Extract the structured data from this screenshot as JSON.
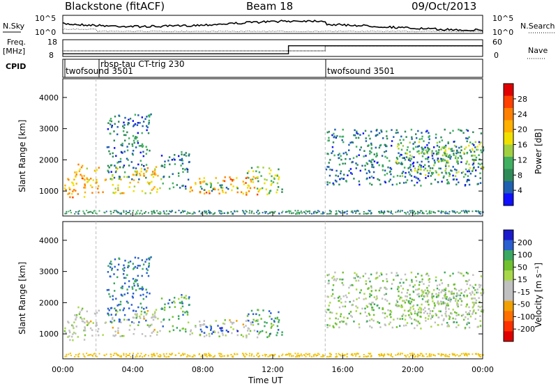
{
  "header": {
    "station": "Blackstone (fitACF)",
    "beam": "Beam 18",
    "date": "09/Oct/2013"
  },
  "noise_panel": {
    "left_label": "N.Sky",
    "right_label": "N.Search",
    "tick_top": "10^5",
    "tick_bottom": "10^0"
  },
  "freq_panel": {
    "left_label_1": "Freq.",
    "left_label_2": "[MHz]",
    "left_tick_top": "18",
    "left_tick_bottom": "8",
    "right_label": "Nave",
    "right_tick_top": "60",
    "right_tick_bottom": "0"
  },
  "cpid_panel": {
    "label": "CPID",
    "segments": [
      "twofsound 3501",
      "rbsp-tau CT-trig 230",
      "twofsound 3501"
    ]
  },
  "power_panel": {
    "ylabel": "Slant Range [km]",
    "cbar_label": "Power [dB]",
    "cbar_ticks": [
      "28",
      "24",
      "20",
      "16",
      "12",
      "8",
      "4"
    ],
    "cbar_colors": [
      "#e00000",
      "#ff4000",
      "#ff8000",
      "#ffb000",
      "#f0e000",
      "#a0d040",
      "#40b060",
      "#2e8b57",
      "#2060b0",
      "#1010ff"
    ]
  },
  "velocity_panel": {
    "ylabel": "Slant Range [km]",
    "cbar_label": "Velocity [m s⁻¹]",
    "cbar_ticks": [
      "200",
      "100",
      "50",
      "15",
      "-15",
      "-50",
      "-100",
      "-200"
    ],
    "cbar_colors": [
      "#1a1acc",
      "#2a5fd0",
      "#3aa860",
      "#70c030",
      "#a8d84a",
      "#c0c0c0",
      "#c0c0c0",
      "#f0a000",
      "#ff7000",
      "#ff3000",
      "#e00000"
    ]
  },
  "x_axis": {
    "label": "Time UT",
    "ticks": [
      "00:00",
      "04:00",
      "08:00",
      "12:00",
      "16:00",
      "20:00",
      "00:00"
    ]
  },
  "chart_data": {
    "type": "heatmap",
    "xlabel": "Time UT",
    "ylabel": "Slant Range [km]",
    "xlim_hours": [
      0,
      24
    ],
    "ylim_km": [
      200,
      4600
    ],
    "y_ticks": [
      1000,
      2000,
      3000,
      4000
    ],
    "cpid_changes_hours": [
      1.9,
      15.0
    ],
    "freq_step_hours": 12.9,
    "freq_ylim_mhz": [
      8,
      18
    ],
    "nave_ylim": [
      0,
      60
    ],
    "echo_regions": [
      {
        "t0": 0.0,
        "t1": 1.2,
        "r0": 800,
        "r1": 1900,
        "pow": 22,
        "vel": -30
      },
      {
        "t0": 1.2,
        "t1": 5.6,
        "r0": 950,
        "r1": 1800,
        "pow": 20,
        "vel": -40
      },
      {
        "t0": 2.5,
        "t1": 5.0,
        "r0": 1400,
        "r1": 3500,
        "pow": 8,
        "vel": 120
      },
      {
        "t0": 5.6,
        "t1": 7.2,
        "r0": 1100,
        "r1": 2300,
        "pow": 8,
        "vel": 60
      },
      {
        "t0": 7.2,
        "t1": 11.2,
        "r0": 900,
        "r1": 1500,
        "pow": 22,
        "vel": -40
      },
      {
        "t0": 7.8,
        "t1": 10.0,
        "r0": 1000,
        "r1": 1300,
        "pow": 10,
        "vel": 180
      },
      {
        "t0": 10.5,
        "t1": 12.5,
        "r0": 900,
        "r1": 1800,
        "pow": 14,
        "vel": 60
      },
      {
        "t0": 15.0,
        "t1": 24.0,
        "r0": 1200,
        "r1": 3000,
        "pow": 8,
        "vel": 0
      },
      {
        "t0": 19.0,
        "t1": 24.0,
        "r0": 1500,
        "r1": 2600,
        "pow": 14,
        "vel": -10
      }
    ]
  }
}
